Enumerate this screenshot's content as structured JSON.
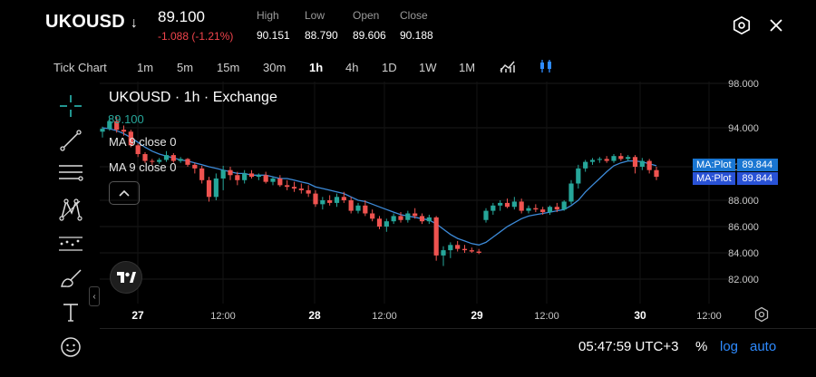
{
  "header": {
    "symbol": "UKOUSD",
    "symbol_arrow": "↓",
    "price": "89.100",
    "change": "-1.088 (-1.21%)",
    "ohlc": [
      {
        "label": "High",
        "value": "90.151"
      },
      {
        "label": "Low",
        "value": "88.790"
      },
      {
        "label": "Open",
        "value": "89.606"
      },
      {
        "label": "Close",
        "value": "90.188"
      }
    ]
  },
  "timeframes": {
    "items": [
      "Tick Chart",
      "1m",
      "5m",
      "15m",
      "30m",
      "1h",
      "4h",
      "1D",
      "1W",
      "1M"
    ],
    "active": "1h"
  },
  "legend": {
    "title": "UKOUSD · 1h · Exchange",
    "price": "89.100",
    "ma1": "MA 9 close 0",
    "ma2": "MA 9 close 0"
  },
  "ma_tags": [
    {
      "key": "MA:Plot",
      "value": "89.844"
    },
    {
      "key": "MA:Plot",
      "value": "89.844"
    }
  ],
  "status": {
    "clock": "05:47:59 UTC+3",
    "percent": "%",
    "log": "log",
    "auto": "auto"
  },
  "colors": {
    "up": "#26a69a",
    "down": "#ef5350",
    "ma": "#3d8bd9",
    "accent": "#2e8bff"
  },
  "chart_data": {
    "type": "candlestick",
    "y_ticks": [
      "98.000",
      "94.000",
      "90.000",
      "88.000",
      "86.000",
      "84.000",
      "82.000"
    ],
    "x_ticks": [
      "27",
      "12:00",
      "28",
      "12:00",
      "29",
      "12:00",
      "30",
      "12:00"
    ],
    "log_scale": true,
    "candles": [
      {
        "o": 93.6,
        "h": 94.1,
        "l": 93.0,
        "c": 93.9
      },
      {
        "o": 93.9,
        "h": 94.9,
        "l": 93.7,
        "c": 94.6
      },
      {
        "o": 94.6,
        "h": 95.0,
        "l": 93.5,
        "c": 93.8
      },
      {
        "o": 93.8,
        "h": 94.2,
        "l": 93.2,
        "c": 93.6
      },
      {
        "o": 93.6,
        "h": 93.8,
        "l": 92.0,
        "c": 92.2
      },
      {
        "o": 92.2,
        "h": 92.4,
        "l": 91.0,
        "c": 91.3
      },
      {
        "o": 91.3,
        "h": 91.5,
        "l": 90.4,
        "c": 90.6
      },
      {
        "o": 90.6,
        "h": 90.8,
        "l": 90.2,
        "c": 90.5
      },
      {
        "o": 90.5,
        "h": 90.9,
        "l": 90.3,
        "c": 90.7
      },
      {
        "o": 90.7,
        "h": 91.6,
        "l": 90.5,
        "c": 91.2
      },
      {
        "o": 91.2,
        "h": 91.4,
        "l": 90.4,
        "c": 90.6
      },
      {
        "o": 90.6,
        "h": 91.0,
        "l": 90.4,
        "c": 90.8
      },
      {
        "o": 90.8,
        "h": 90.9,
        "l": 90.0,
        "c": 90.2
      },
      {
        "o": 90.2,
        "h": 90.4,
        "l": 89.6,
        "c": 89.9
      },
      {
        "o": 89.9,
        "h": 90.1,
        "l": 89.0,
        "c": 89.2
      },
      {
        "o": 89.2,
        "h": 89.4,
        "l": 87.9,
        "c": 88.2
      },
      {
        "o": 88.2,
        "h": 89.6,
        "l": 88.0,
        "c": 89.3
      },
      {
        "o": 89.3,
        "h": 90.1,
        "l": 88.6,
        "c": 89.8
      },
      {
        "o": 89.8,
        "h": 90.0,
        "l": 89.2,
        "c": 89.5
      },
      {
        "o": 89.5,
        "h": 89.7,
        "l": 88.9,
        "c": 89.2
      },
      {
        "o": 89.2,
        "h": 89.8,
        "l": 89.0,
        "c": 89.6
      },
      {
        "o": 89.6,
        "h": 89.8,
        "l": 89.3,
        "c": 89.4
      },
      {
        "o": 89.4,
        "h": 89.6,
        "l": 89.2,
        "c": 89.5
      },
      {
        "o": 89.5,
        "h": 89.7,
        "l": 89.0,
        "c": 89.1
      },
      {
        "o": 89.1,
        "h": 89.4,
        "l": 88.9,
        "c": 89.3
      },
      {
        "o": 89.3,
        "h": 89.5,
        "l": 88.8,
        "c": 88.9
      },
      {
        "o": 88.9,
        "h": 89.2,
        "l": 88.6,
        "c": 88.8
      },
      {
        "o": 88.8,
        "h": 89.1,
        "l": 88.5,
        "c": 88.7
      },
      {
        "o": 88.7,
        "h": 89.0,
        "l": 88.4,
        "c": 88.6
      },
      {
        "o": 88.6,
        "h": 88.9,
        "l": 88.2,
        "c": 88.4
      },
      {
        "o": 88.4,
        "h": 88.6,
        "l": 87.5,
        "c": 87.7
      },
      {
        "o": 87.7,
        "h": 88.2,
        "l": 87.3,
        "c": 88.0
      },
      {
        "o": 88.0,
        "h": 88.3,
        "l": 87.6,
        "c": 87.8
      },
      {
        "o": 87.8,
        "h": 88.4,
        "l": 87.5,
        "c": 88.2
      },
      {
        "o": 88.2,
        "h": 88.5,
        "l": 87.8,
        "c": 88.0
      },
      {
        "o": 88.0,
        "h": 88.2,
        "l": 87.0,
        "c": 87.2
      },
      {
        "o": 87.2,
        "h": 87.8,
        "l": 87.0,
        "c": 87.6
      },
      {
        "o": 87.6,
        "h": 88.0,
        "l": 86.8,
        "c": 87.0
      },
      {
        "o": 87.0,
        "h": 87.3,
        "l": 86.4,
        "c": 86.6
      },
      {
        "o": 86.6,
        "h": 86.8,
        "l": 85.8,
        "c": 86.0
      },
      {
        "o": 86.0,
        "h": 86.6,
        "l": 85.6,
        "c": 86.4
      },
      {
        "o": 86.4,
        "h": 87.0,
        "l": 86.2,
        "c": 86.8
      },
      {
        "o": 86.8,
        "h": 87.1,
        "l": 86.3,
        "c": 86.5
      },
      {
        "o": 86.5,
        "h": 87.2,
        "l": 86.3,
        "c": 87.0
      },
      {
        "o": 87.0,
        "h": 87.4,
        "l": 86.6,
        "c": 86.8
      },
      {
        "o": 86.8,
        "h": 87.0,
        "l": 86.2,
        "c": 86.4
      },
      {
        "o": 86.4,
        "h": 86.9,
        "l": 86.2,
        "c": 86.7
      },
      {
        "o": 86.7,
        "h": 86.8,
        "l": 83.4,
        "c": 83.8
      },
      {
        "o": 83.8,
        "h": 84.5,
        "l": 83.0,
        "c": 84.2
      },
      {
        "o": 84.2,
        "h": 84.8,
        "l": 83.6,
        "c": 84.6
      },
      {
        "o": 84.6,
        "h": 84.9,
        "l": 84.1,
        "c": 84.3
      },
      {
        "o": 84.3,
        "h": 84.6,
        "l": 84.0,
        "c": 84.2
      },
      {
        "o": 84.2,
        "h": 84.4,
        "l": 84.0,
        "c": 84.1
      },
      {
        "o": 84.1,
        "h": 84.3,
        "l": 83.9,
        "c": 84.0
      },
      {
        "o": 86.5,
        "h": 87.4,
        "l": 86.3,
        "c": 87.2
      },
      {
        "o": 87.2,
        "h": 87.8,
        "l": 86.9,
        "c": 87.6
      },
      {
        "o": 87.6,
        "h": 88.0,
        "l": 87.2,
        "c": 87.8
      },
      {
        "o": 87.8,
        "h": 88.1,
        "l": 87.4,
        "c": 87.5
      },
      {
        "o": 87.5,
        "h": 88.2,
        "l": 87.3,
        "c": 87.9
      },
      {
        "o": 87.9,
        "h": 88.1,
        "l": 87.0,
        "c": 87.2
      },
      {
        "o": 87.2,
        "h": 87.6,
        "l": 87.0,
        "c": 87.4
      },
      {
        "o": 87.4,
        "h": 87.7,
        "l": 87.1,
        "c": 87.3
      },
      {
        "o": 87.3,
        "h": 87.5,
        "l": 86.9,
        "c": 87.1
      },
      {
        "o": 87.1,
        "h": 87.6,
        "l": 86.9,
        "c": 87.5
      },
      {
        "o": 87.5,
        "h": 87.8,
        "l": 87.1,
        "c": 87.3
      },
      {
        "o": 87.3,
        "h": 88.0,
        "l": 87.2,
        "c": 87.9
      },
      {
        "o": 87.9,
        "h": 89.2,
        "l": 87.7,
        "c": 89.0
      },
      {
        "o": 89.0,
        "h": 90.2,
        "l": 88.7,
        "c": 89.9
      },
      {
        "o": 89.9,
        "h": 90.7,
        "l": 89.7,
        "c": 90.5
      },
      {
        "o": 90.5,
        "h": 90.9,
        "l": 90.2,
        "c": 90.7
      },
      {
        "o": 90.7,
        "h": 91.0,
        "l": 90.4,
        "c": 90.8
      },
      {
        "o": 90.8,
        "h": 91.1,
        "l": 90.4,
        "c": 90.6
      },
      {
        "o": 90.6,
        "h": 91.3,
        "l": 90.4,
        "c": 91.1
      },
      {
        "o": 91.1,
        "h": 91.4,
        "l": 90.6,
        "c": 90.8
      },
      {
        "o": 90.8,
        "h": 91.2,
        "l": 90.6,
        "c": 91.0
      },
      {
        "o": 91.0,
        "h": 91.2,
        "l": 89.6,
        "c": 90.0
      },
      {
        "o": 90.0,
        "h": 90.9,
        "l": 89.8,
        "c": 90.6
      },
      {
        "o": 90.6,
        "h": 90.8,
        "l": 89.6,
        "c": 89.8
      },
      {
        "o": 89.8,
        "h": 90.0,
        "l": 89.2,
        "c": 89.4
      }
    ],
    "ma": [
      94.0,
      93.9,
      93.7,
      93.4,
      93.0,
      92.5,
      92.0,
      91.6,
      91.3,
      91.1,
      90.9,
      90.7,
      90.6,
      90.4,
      90.2,
      90.0,
      89.9,
      89.8,
      89.7,
      89.6,
      89.6,
      89.5,
      89.5,
      89.5,
      89.4,
      89.3,
      89.3,
      89.2,
      89.1,
      89.0,
      88.8,
      88.7,
      88.6,
      88.5,
      88.4,
      88.2,
      88.0,
      87.9,
      87.7,
      87.5,
      87.3,
      87.1,
      86.9,
      86.8,
      86.7,
      86.6,
      86.5,
      86.2,
      85.8,
      85.4,
      85.1,
      84.9,
      84.7,
      84.6,
      84.8,
      85.2,
      85.6,
      86.0,
      86.3,
      86.6,
      86.8,
      86.9,
      87.0,
      87.1,
      87.2,
      87.3,
      87.6,
      88.0,
      88.5,
      88.9,
      89.3,
      89.7,
      90.1,
      90.4,
      90.6,
      90.6,
      90.5,
      90.3,
      90.1
    ]
  }
}
